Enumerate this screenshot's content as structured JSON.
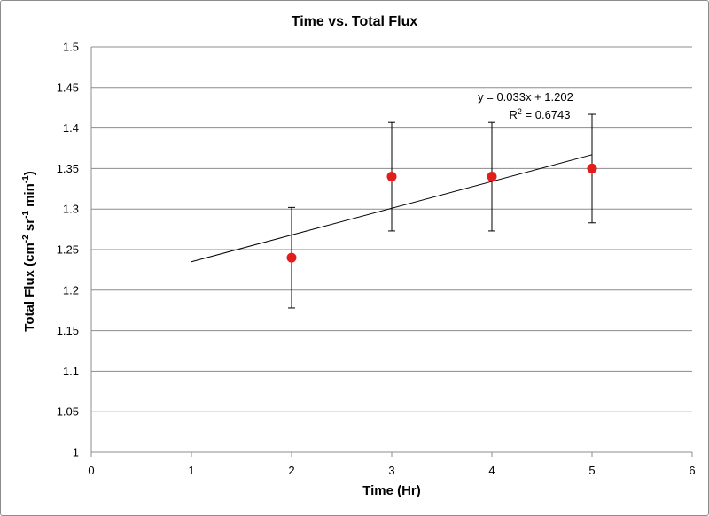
{
  "chart_data": {
    "type": "scatter",
    "title": "Time vs. Total Flux",
    "xlabel": "Time (Hr)",
    "ylabel": {
      "parts": [
        {
          "text": "Total Flux (cm",
          "sup": false
        },
        {
          "text": "-2",
          "sup": true
        },
        {
          "text": " sr",
          "sup": false
        },
        {
          "text": "-1",
          "sup": true
        },
        {
          "text": " min",
          "sup": false
        },
        {
          "text": "-1",
          "sup": true
        },
        {
          "text": ")",
          "sup": false
        }
      ]
    },
    "xlim": [
      0,
      6
    ],
    "ylim": [
      1,
      1.5
    ],
    "xticks": [
      "0",
      "1",
      "2",
      "3",
      "4",
      "5",
      "6"
    ],
    "yticks": [
      "1",
      "1.05",
      "1.1",
      "1.15",
      "1.2",
      "1.25",
      "1.3",
      "1.35",
      "1.4",
      "1.45",
      "1.5"
    ],
    "grid": "horizontal",
    "series": [
      {
        "name": "Total Flux",
        "color": "#e31c1c",
        "x": [
          2,
          3,
          4,
          5
        ],
        "y": [
          1.24,
          1.34,
          1.34,
          1.35
        ],
        "error": [
          0.062,
          0.067,
          0.067,
          0.067
        ]
      }
    ],
    "trendline": {
      "slope": 0.033,
      "intercept": 1.202,
      "x_range": [
        1,
        5
      ],
      "equation": "y = 0.033x + 1.202",
      "r2_prefix": "R",
      "r2_sup": "2",
      "r2_value": " = 0.6743"
    }
  }
}
